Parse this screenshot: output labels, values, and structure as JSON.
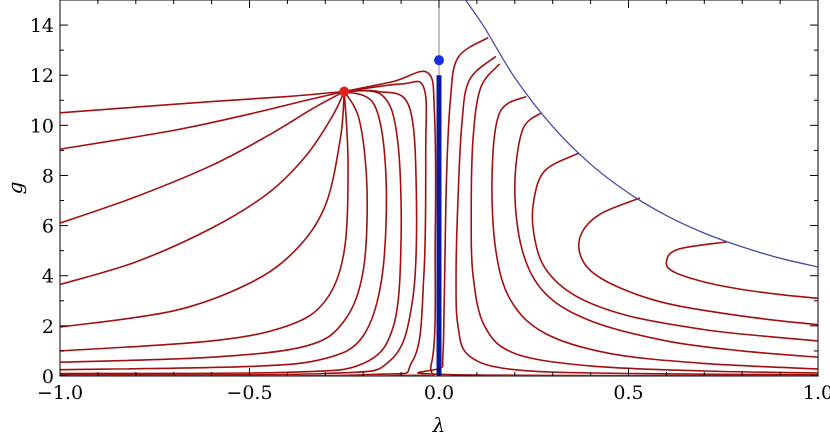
{
  "chart_data": {
    "type": "line",
    "title": "",
    "xlabel": "λ",
    "ylabel": "g",
    "xlim": [
      -1.0,
      1.0
    ],
    "ylim": [
      0,
      15
    ],
    "x_ticks": [
      {
        "value": -1.0,
        "label": "−1.0"
      },
      {
        "value": -0.5,
        "label": "−0.5"
      },
      {
        "value": 0.0,
        "label": "0.0"
      },
      {
        "value": 0.5,
        "label": "0.5"
      },
      {
        "value": 1.0,
        "label": "1.0"
      }
    ],
    "y_ticks": [
      {
        "value": 0,
        "label": "0"
      },
      {
        "value": 2,
        "label": "2"
      },
      {
        "value": 4,
        "label": "4"
      },
      {
        "value": 6,
        "label": "6"
      },
      {
        "value": 8,
        "label": "8"
      },
      {
        "value": 10,
        "label": "10"
      },
      {
        "value": 12,
        "label": "12"
      },
      {
        "value": 14,
        "label": "14"
      }
    ],
    "grid": false,
    "colors": {
      "flow_lines": "#a01010",
      "boundary_curve": "#4a4aa8",
      "separatrix": "#0a1a9a",
      "fixed_point_ngfp": "#e02020",
      "fixed_point_gfp": "#1a30e0",
      "zero_axis": "#888888"
    },
    "boundary_curve": {
      "x": [
        0.07,
        0.12,
        0.2,
        0.3,
        0.4,
        0.5,
        0.6,
        0.7,
        0.8,
        0.9,
        1.0
      ],
      "y": [
        15.0,
        13.9,
        11.9,
        9.95,
        8.45,
        7.3,
        6.4,
        5.7,
        5.15,
        4.7,
        4.35
      ]
    },
    "separatrix": {
      "x": [
        0.0,
        0.0
      ],
      "y": [
        0.0,
        12.0
      ]
    },
    "fixed_points": [
      {
        "x": -0.25,
        "y": 11.35,
        "color": "#e02020"
      },
      {
        "x": 0.0,
        "y": 12.6,
        "color": "#1a30e0"
      }
    ],
    "series": [
      {
        "x": [
          -1.0,
          -0.6,
          -0.4,
          -0.3,
          -0.25
        ],
        "y": [
          10.5,
          10.95,
          11.15,
          11.28,
          11.35
        ]
      },
      {
        "x": [
          -1.0,
          -0.7,
          -0.5,
          -0.35,
          -0.25
        ],
        "y": [
          9.05,
          9.8,
          10.45,
          11.0,
          11.35
        ]
      },
      {
        "x": [
          -1.0,
          -0.8,
          -0.6,
          -0.45,
          -0.33,
          -0.25
        ],
        "y": [
          6.1,
          7.15,
          8.4,
          9.6,
          10.7,
          11.35
        ]
      },
      {
        "x": [
          -1.0,
          -0.8,
          -0.6,
          -0.45,
          -0.35,
          -0.28,
          -0.25
        ],
        "y": [
          3.65,
          4.55,
          5.9,
          7.3,
          8.8,
          10.4,
          11.35
        ]
      },
      {
        "x": [
          -1.0,
          -0.7,
          -0.5,
          -0.38,
          -0.3,
          -0.26,
          -0.25
        ],
        "y": [
          1.95,
          2.6,
          3.7,
          5.0,
          6.8,
          9.5,
          11.35
        ]
      },
      {
        "x": [
          -1.0,
          -0.6,
          -0.4,
          -0.3,
          -0.25,
          -0.24,
          -0.25
        ],
        "y": [
          1.0,
          1.4,
          2.0,
          3.0,
          5.0,
          8.5,
          11.35
        ]
      },
      {
        "x": [
          -1.0,
          -0.6,
          -0.35,
          -0.25,
          -0.2,
          -0.19,
          -0.21,
          -0.25
        ],
        "y": [
          0.55,
          0.75,
          1.2,
          2.2,
          4.2,
          7.5,
          10.2,
          11.35
        ]
      },
      {
        "x": [
          -1.0,
          -0.5,
          -0.3,
          -0.2,
          -0.15,
          -0.14,
          -0.17,
          -0.25
        ],
        "y": [
          0.25,
          0.38,
          0.7,
          1.6,
          4.0,
          8.0,
          10.8,
          11.35
        ]
      },
      {
        "x": [
          -1.0,
          -0.4,
          -0.2,
          -0.12,
          -0.1,
          -0.11,
          -0.15,
          -0.25
        ],
        "y": [
          0.1,
          0.15,
          0.5,
          2.0,
          5.5,
          9.5,
          11.2,
          11.35
        ]
      },
      {
        "x": [
          -1.0,
          -0.3,
          -0.13,
          -0.07,
          -0.06,
          -0.08,
          -0.16,
          -0.25
        ],
        "y": [
          0.05,
          0.1,
          0.6,
          3.0,
          7.5,
          10.8,
          11.35,
          11.35
        ]
      },
      {
        "x": [
          -1.0,
          -0.2,
          -0.07,
          -0.04,
          -0.035,
          -0.04,
          -0.1,
          -0.25
        ],
        "y": [
          0.02,
          0.05,
          0.6,
          4.0,
          9.0,
          11.5,
          11.65,
          11.35
        ]
      },
      {
        "x": [
          -1.0,
          -0.1,
          -0.02,
          -0.01,
          -0.012,
          -0.03,
          -0.12,
          -0.25
        ],
        "y": [
          0.01,
          0.02,
          0.5,
          5.5,
          10.5,
          12.1,
          11.75,
          11.35
        ]
      },
      {
        "x": [
          0.13,
          0.05,
          0.03,
          0.02,
          0.015,
          0.012,
          0.01,
          0.02,
          1.0
        ],
        "y": [
          13.5,
          12.7,
          11.0,
          8.0,
          4.0,
          1.5,
          0.4,
          0.06,
          0.01
        ]
      },
      {
        "x": [
          0.15,
          0.08,
          0.06,
          0.05,
          0.045,
          0.05,
          0.08,
          0.2,
          0.5,
          1.0
        ],
        "y": [
          12.75,
          11.8,
          10.0,
          7.0,
          4.0,
          2.0,
          0.8,
          0.25,
          0.1,
          0.05
        ]
      },
      {
        "x": [
          0.16,
          0.11,
          0.09,
          0.085,
          0.09,
          0.12,
          0.2,
          0.4,
          0.7,
          1.0
        ],
        "y": [
          12.45,
          11.5,
          9.5,
          6.5,
          4.0,
          2.0,
          0.9,
          0.4,
          0.2,
          0.12
        ]
      },
      {
        "x": [
          0.23,
          0.16,
          0.14,
          0.15,
          0.19,
          0.28,
          0.45,
          0.7,
          1.0
        ],
        "y": [
          11.15,
          10.5,
          8.0,
          5.0,
          3.0,
          1.7,
          0.9,
          0.5,
          0.28
        ]
      },
      {
        "x": [
          0.27,
          0.22,
          0.2,
          0.22,
          0.28,
          0.4,
          0.6,
          0.8,
          1.0
        ],
        "y": [
          10.5,
          9.8,
          7.5,
          5.0,
          3.3,
          2.2,
          1.4,
          1.0,
          0.75
        ]
      },
      {
        "x": [
          0.37,
          0.28,
          0.25,
          0.25,
          0.28,
          0.36,
          0.5,
          0.7,
          0.85,
          1.0
        ],
        "y": [
          8.9,
          8.2,
          7.0,
          5.7,
          4.3,
          3.2,
          2.4,
          1.85,
          1.6,
          1.4
        ]
      },
      {
        "x": [
          0.53,
          0.43,
          0.38,
          0.37,
          0.4,
          0.48,
          0.6,
          0.75,
          0.9,
          1.0
        ],
        "y": [
          7.1,
          6.5,
          5.8,
          5.0,
          4.2,
          3.5,
          2.9,
          2.5,
          2.2,
          2.05
        ]
      },
      {
        "x": [
          0.76,
          0.63,
          0.6,
          0.62,
          0.7,
          0.8,
          0.9,
          1.0
        ],
        "y": [
          5.35,
          5.05,
          4.55,
          4.15,
          3.75,
          3.45,
          3.25,
          3.1
        ]
      }
    ]
  }
}
